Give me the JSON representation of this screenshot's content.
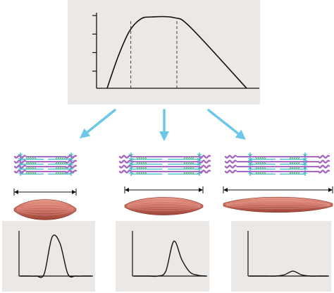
{
  "chart_data": [
    {
      "type": "line",
      "title": "",
      "xlabel": "",
      "ylabel": "",
      "series": [
        {
          "values": [
            {
              "x": 0.0,
              "y": 0.0
            },
            {
              "x": 0.08,
              "y": 0.45
            },
            {
              "x": 0.16,
              "y": 0.8
            },
            {
              "x": 0.24,
              "y": 0.97
            },
            {
              "x": 0.32,
              "y": 1.0
            },
            {
              "x": 0.48,
              "y": 0.99
            },
            {
              "x": 0.6,
              "y": 0.85
            },
            {
              "x": 1.0,
              "y": 0.0
            }
          ]
        }
      ],
      "markers": [
        0.17,
        0.5
      ],
      "y_ticks": 4,
      "grid": false
    },
    {
      "type": "line",
      "title": "",
      "series": [
        {
          "values": [
            0,
            0,
            0,
            0.05,
            0.95,
            0.8,
            0.05,
            0,
            0,
            0
          ]
        }
      ]
    },
    {
      "type": "line",
      "title": "",
      "series": [
        {
          "values": [
            0,
            0,
            0,
            0,
            0.12,
            0.85,
            0.4,
            0.1,
            0.02,
            0
          ]
        }
      ]
    },
    {
      "type": "line",
      "title": "",
      "series": [
        {
          "values": [
            0,
            0,
            0,
            0,
            0.03,
            0.12,
            0.03,
            0,
            0,
            0
          ]
        }
      ]
    }
  ],
  "sarcomeres": [
    {
      "state": "short",
      "overlap": "high"
    },
    {
      "state": "optimal",
      "overlap": "optimal"
    },
    {
      "state": "stretched",
      "overlap": "low"
    }
  ],
  "colors": {
    "panel": "#ebe8e6",
    "arrow": "#6cc8e6",
    "actin": "#34b9c4",
    "myosin": "#a869c5",
    "crossbridge": "#55b56e",
    "muscle": "#cf7063",
    "curve": "#1a1a1a"
  }
}
